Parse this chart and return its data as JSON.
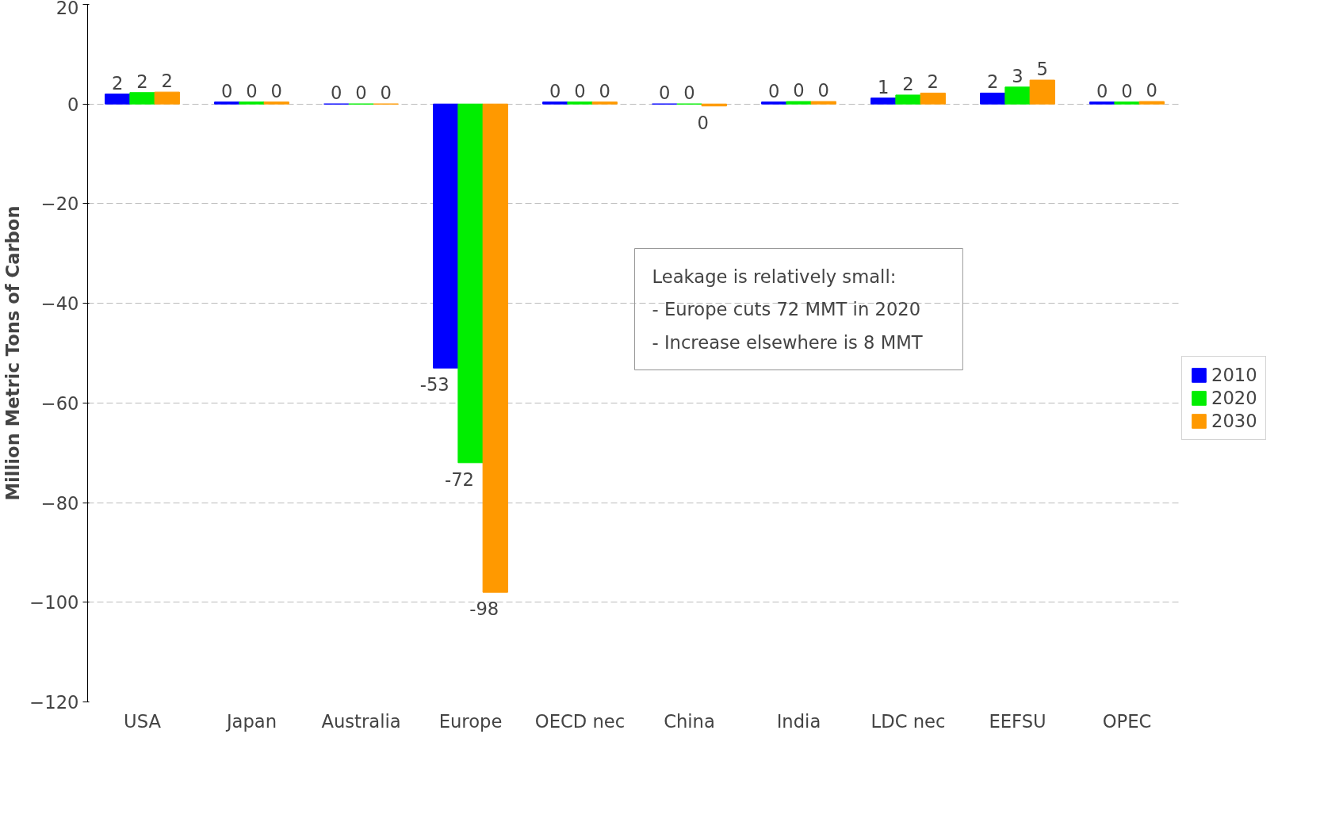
{
  "chart_data": {
    "type": "bar",
    "ylabel": "Million Metric Tons of Carbon",
    "categories": [
      "USA",
      "Japan",
      "Australia",
      "Europe",
      "OECD nec",
      "China",
      "India",
      "LDC nec",
      "EEFSU",
      "OPEC"
    ],
    "series": [
      {
        "name": "2010",
        "color": "#0000ff",
        "values": [
          2.0,
          0.4,
          0.0,
          -53,
          0.4,
          0.0,
          0.4,
          1.2,
          2.2,
          0.4
        ],
        "value_labels": [
          "2",
          "0",
          "0",
          "-53",
          "0",
          "0",
          "0",
          "1",
          "2",
          "0"
        ]
      },
      {
        "name": "2020",
        "color": "#00ee00",
        "values": [
          2.3,
          0.4,
          0.0,
          -72,
          0.4,
          0.0,
          0.5,
          1.8,
          3.4,
          0.4
        ],
        "value_labels": [
          "2",
          "0",
          "0",
          "-72",
          "0",
          "0",
          "0",
          "2",
          "3",
          "0"
        ]
      },
      {
        "name": "2030",
        "color": "#ff9900",
        "values": [
          2.4,
          0.4,
          0.0,
          -98,
          0.4,
          -0.4,
          0.5,
          2.2,
          4.8,
          0.5
        ],
        "value_labels": [
          "2",
          "0",
          "0",
          "-98",
          "0",
          "0",
          "0",
          "2",
          "5",
          "0"
        ]
      }
    ],
    "ylim": [
      -120,
      20
    ],
    "yticks": [
      -120,
      -100,
      -80,
      -60,
      -40,
      -20,
      0,
      20
    ],
    "grid": "y",
    "legend": "right",
    "annotations": [
      "Leakage is relatively small:\n    - Europe cuts 72 MMT in 2020\n    - Increase elsewhere is 8 MMT"
    ]
  }
}
